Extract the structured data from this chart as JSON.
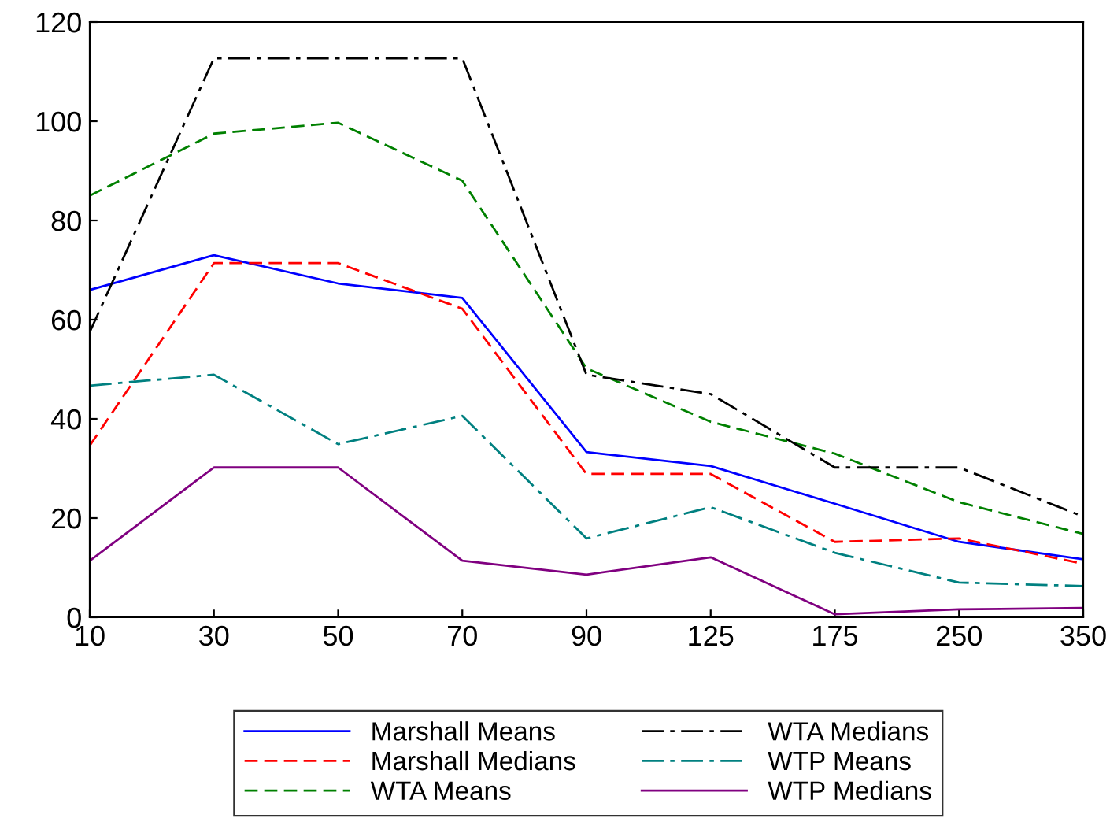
{
  "chart_data": {
    "type": "line",
    "categories": [
      "10",
      "30",
      "50",
      "70",
      "90",
      "125",
      "175",
      "250",
      "350"
    ],
    "ylim": [
      0,
      120
    ],
    "yticks": [
      0,
      20,
      40,
      60,
      80,
      100,
      120
    ],
    "grid": false,
    "legend": "bottom",
    "marker": "none",
    "series": [
      {
        "name": "Marshall Means",
        "color": "#0000ff",
        "line_style": "solid",
        "values": [
          66,
          73,
          67.3,
          64.4,
          33.3,
          30.5,
          22.9,
          15.2,
          11.7
        ]
      },
      {
        "name": "Marshall Medians",
        "color": "#ff0000",
        "line_style": "dashed",
        "values": [
          34.6,
          71.4,
          71.4,
          62.2,
          28.9,
          28.9,
          15.2,
          15.9,
          10.8
        ]
      },
      {
        "name": "WTA Means",
        "color": "#008000",
        "line_style": "dashed",
        "values": [
          85,
          97.5,
          99.7,
          88,
          50.2,
          39.4,
          33,
          23.2,
          16.8
        ]
      },
      {
        "name": "WTA Medians",
        "color": "#000000",
        "line_style": "dashdot",
        "values": [
          57.5,
          112.7,
          112.7,
          112.7,
          48.9,
          45,
          30.2,
          30.2,
          20.3
        ]
      },
      {
        "name": "WTP Means",
        "color": "#008080",
        "line_style": "dashdot",
        "values": [
          46.7,
          48.9,
          34.9,
          40.6,
          15.9,
          22.2,
          13,
          7,
          6.3
        ]
      },
      {
        "name": "WTP Medians",
        "color": "#800080",
        "line_style": "solid",
        "values": [
          11.4,
          30.2,
          30.2,
          11.4,
          8.6,
          12.1,
          0.6,
          1.6,
          1.9
        ]
      }
    ]
  }
}
